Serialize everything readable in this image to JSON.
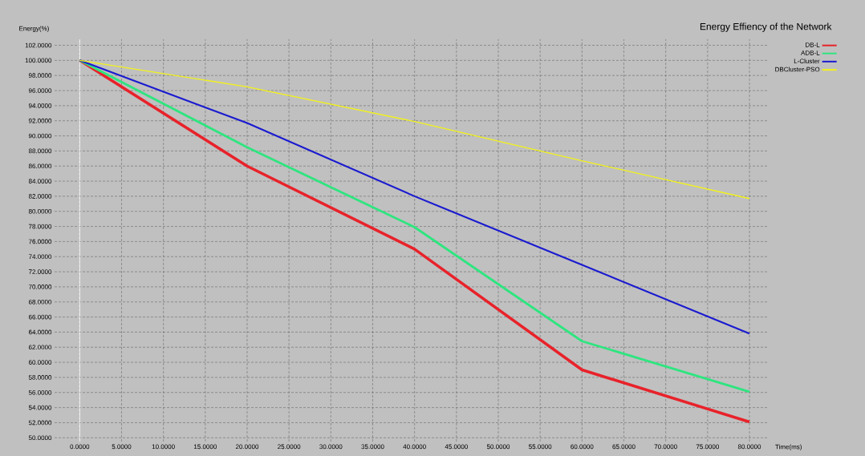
{
  "chart_data": {
    "type": "line",
    "title": "Energy Effiency of the Network",
    "xlabel": "Time(ms)",
    "ylabel": "Energy(%)",
    "x": [
      0,
      20,
      40,
      60,
      80
    ],
    "series": [
      {
        "name": "DB-L",
        "color": "#e8222a",
        "values": [
          100,
          86.0,
          75.0,
          59.0,
          52.1
        ]
      },
      {
        "name": "ADB-L",
        "color": "#2ee57f",
        "values": [
          100,
          88.5,
          77.9,
          62.8,
          56.1
        ]
      },
      {
        "name": "L-Cluster",
        "color": "#1a1ad0",
        "values": [
          100,
          91.7,
          82.0,
          72.9,
          63.8
        ]
      },
      {
        "name": "DBCluster-PSO",
        "color": "#f2f21a",
        "values": [
          100,
          96.5,
          91.9,
          86.7,
          81.7
        ]
      }
    ],
    "xlim": [
      -3,
      82.3
    ],
    "ylim": [
      49.5,
      102.8
    ],
    "xticks": [
      {
        "value": 0,
        "label": "0.0000"
      },
      {
        "value": 5,
        "label": "5.0000"
      },
      {
        "value": 10,
        "label": "10.0000"
      },
      {
        "value": 15,
        "label": "15.0000"
      },
      {
        "value": 20,
        "label": "20.0000"
      },
      {
        "value": 25,
        "label": "25.0000"
      },
      {
        "value": 30,
        "label": "30.0000"
      },
      {
        "value": 35,
        "label": "35.0000"
      },
      {
        "value": 40,
        "label": "40.0000"
      },
      {
        "value": 45,
        "label": "45.0000"
      },
      {
        "value": 50,
        "label": "50.0000"
      },
      {
        "value": 55,
        "label": "55.0000"
      },
      {
        "value": 60,
        "label": "60.0000"
      },
      {
        "value": 65,
        "label": "65.0000"
      },
      {
        "value": 70,
        "label": "70.0000"
      },
      {
        "value": 75,
        "label": "75.0000"
      },
      {
        "value": 80,
        "label": "80.0000"
      }
    ],
    "yticks": [
      {
        "value": 50,
        "label": "50.0000"
      },
      {
        "value": 52,
        "label": "52.0000"
      },
      {
        "value": 54,
        "label": "54.0000"
      },
      {
        "value": 56,
        "label": "56.0000"
      },
      {
        "value": 58,
        "label": "58.0000"
      },
      {
        "value": 60,
        "label": "60.0000"
      },
      {
        "value": 62,
        "label": "62.0000"
      },
      {
        "value": 64,
        "label": "64.0000"
      },
      {
        "value": 66,
        "label": "66.0000"
      },
      {
        "value": 68,
        "label": "68.0000"
      },
      {
        "value": 70,
        "label": "70.0000"
      },
      {
        "value": 72,
        "label": "72.0000"
      },
      {
        "value": 74,
        "label": "74.0000"
      },
      {
        "value": 76,
        "label": "76.0000"
      },
      {
        "value": 78,
        "label": "78.0000"
      },
      {
        "value": 80,
        "label": "80.0000"
      },
      {
        "value": 82,
        "label": "82.0000"
      },
      {
        "value": 84,
        "label": "84.0000"
      },
      {
        "value": 86,
        "label": "86.0000"
      },
      {
        "value": 88,
        "label": "88.0000"
      },
      {
        "value": 90,
        "label": "90.0000"
      },
      {
        "value": 92,
        "label": "92.0000"
      },
      {
        "value": 94,
        "label": "94.0000"
      },
      {
        "value": 96,
        "label": "96.0000"
      },
      {
        "value": 98,
        "label": "98.0000"
      },
      {
        "value": 100,
        "label": "100.0000"
      },
      {
        "value": 102,
        "label": "102.0000"
      }
    ],
    "ref_lines": [
      {
        "axis": "x",
        "value": 0,
        "color": "#ffffff"
      }
    ],
    "grid": true,
    "legend": "top right",
    "marker": "none",
    "line_style": "solid"
  }
}
